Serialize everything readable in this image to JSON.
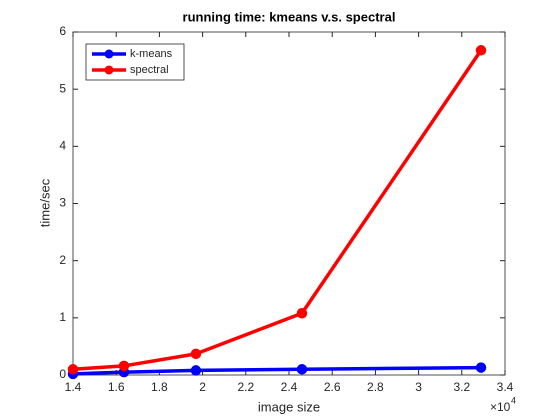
{
  "chart_data": {
    "type": "line",
    "title": "running time: kmeans v.s. spectral",
    "x_label": "image size",
    "y_label": "time/sec",
    "x_scale_base": "×10",
    "x_scale_exponent": "4",
    "x": [
      1.4,
      1.636,
      1.969,
      2.46,
      3.289
    ],
    "series": [
      {
        "name": "k-means",
        "color": "#0000ff",
        "values": [
          0.02,
          0.05,
          0.08,
          0.1,
          0.13
        ]
      },
      {
        "name": "spectral",
        "color": "#ff0000",
        "values": [
          0.1,
          0.16,
          0.37,
          1.08,
          5.68
        ]
      }
    ],
    "xlim": [
      1.4,
      3.4
    ],
    "xticks": [
      1.4,
      1.6,
      1.8,
      2,
      2.2,
      2.4,
      2.6,
      2.8,
      3,
      3.2,
      3.4
    ],
    "ylim": [
      0,
      6
    ],
    "yticks": [
      0,
      1,
      2,
      3,
      4,
      5,
      6
    ],
    "grid": false,
    "legend": "top-left"
  }
}
